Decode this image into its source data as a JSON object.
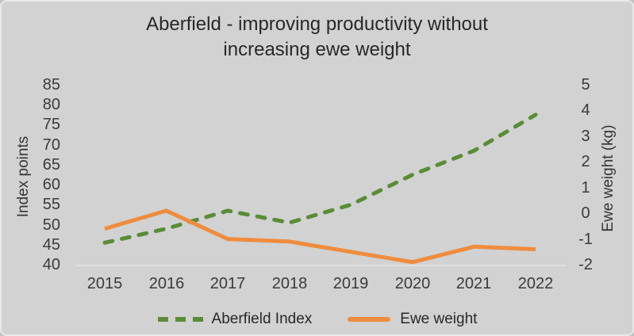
{
  "chart_data": {
    "type": "line",
    "title": "Aberfield - improving productivity without increasing ewe weight",
    "title_lines": [
      "Aberfield - improving productivity without",
      "increasing ewe weight"
    ],
    "categories": [
      "2015",
      "2016",
      "2017",
      "2018",
      "2019",
      "2020",
      "2021",
      "2022"
    ],
    "series": [
      {
        "name": "Aberfield Index",
        "axis": "left",
        "style": "dashed",
        "color": "#5a8c38",
        "values": [
          45.5,
          49,
          53.5,
          50.5,
          55,
          62.5,
          68.5,
          77.5
        ]
      },
      {
        "name": "Ewe weight",
        "axis": "right",
        "style": "solid",
        "color": "#ef8c3e",
        "values": [
          -0.6,
          0.1,
          -1.0,
          -1.1,
          -1.5,
          -1.9,
          -1.3,
          -1.4
        ]
      }
    ],
    "left_axis": {
      "label": "Index points",
      "min": 40,
      "max": 85,
      "step": 5,
      "ticks": [
        85,
        80,
        75,
        70,
        65,
        60,
        55,
        50,
        45,
        40
      ]
    },
    "right_axis": {
      "label": "Ewe weight (kg)",
      "min": -2,
      "max": 5,
      "step": 1,
      "ticks": [
        5,
        4,
        3,
        2,
        1,
        0,
        -1,
        -2
      ]
    },
    "xlabel": "",
    "grid": false,
    "legend_position": "bottom",
    "colors": {
      "background": "#d2d2d2",
      "border": "#e9e9e9",
      "baseline": "#e0e0e0",
      "text": "#282828"
    }
  }
}
